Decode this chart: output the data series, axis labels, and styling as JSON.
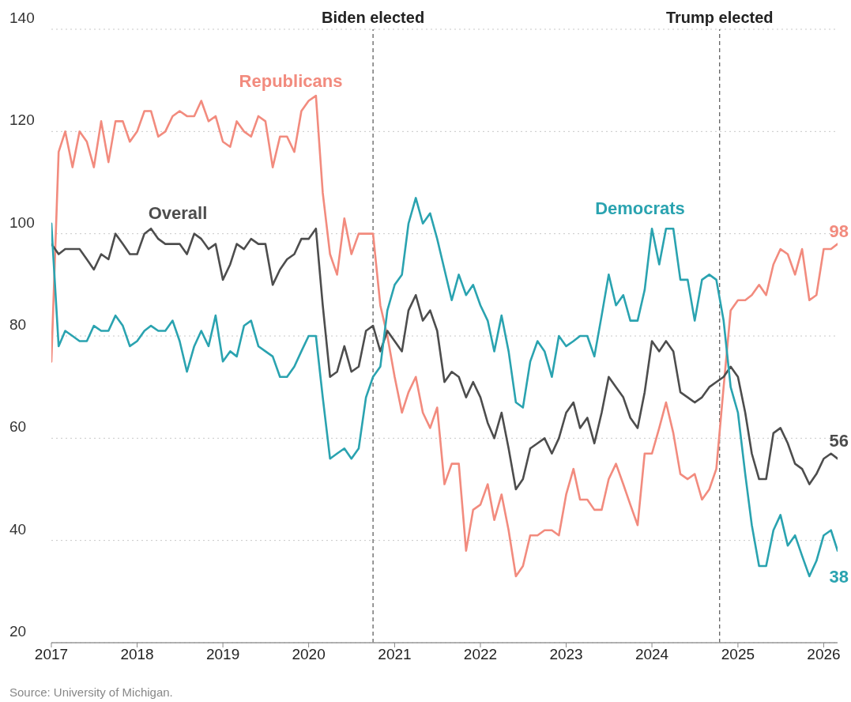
{
  "chart_data": {
    "type": "line",
    "x": [
      "2017-01",
      "2017-02",
      "2017-03",
      "2017-04",
      "2017-05",
      "2017-06",
      "2017-07",
      "2017-08",
      "2017-09",
      "2017-10",
      "2017-11",
      "2017-12",
      "2018-01",
      "2018-02",
      "2018-03",
      "2018-04",
      "2018-05",
      "2018-06",
      "2018-07",
      "2018-08",
      "2018-09",
      "2018-10",
      "2018-11",
      "2018-12",
      "2019-01",
      "2019-02",
      "2019-03",
      "2019-04",
      "2019-05",
      "2019-06",
      "2019-07",
      "2019-08",
      "2019-09",
      "2019-10",
      "2019-11",
      "2019-12",
      "2020-01",
      "2020-02",
      "2020-03",
      "2020-04",
      "2020-05",
      "2020-06",
      "2020-07",
      "2020-08",
      "2020-09",
      "2020-10",
      "2020-11",
      "2020-12",
      "2021-01",
      "2021-02",
      "2021-03",
      "2021-04",
      "2021-05",
      "2021-06",
      "2021-07",
      "2021-08",
      "2021-09",
      "2021-10",
      "2021-11",
      "2021-12",
      "2022-01",
      "2022-02",
      "2022-03",
      "2022-04",
      "2022-05",
      "2022-06",
      "2022-07",
      "2022-08",
      "2022-09",
      "2022-10",
      "2022-11",
      "2022-12",
      "2023-01",
      "2023-02",
      "2023-03",
      "2023-04",
      "2023-05",
      "2023-06",
      "2023-07",
      "2023-08",
      "2023-09",
      "2023-10",
      "2023-11",
      "2023-12",
      "2024-01",
      "2024-02",
      "2024-03",
      "2024-04",
      "2024-05",
      "2024-06",
      "2024-07",
      "2024-08",
      "2024-09",
      "2024-10",
      "2024-11",
      "2024-12",
      "2025-01",
      "2025-02",
      "2025-03",
      "2025-04",
      "2025-05",
      "2025-06",
      "2025-07",
      "2025-08",
      "2025-09",
      "2025-10",
      "2025-11",
      "2025-12",
      "2026-01",
      "2026-02",
      "2026-03"
    ],
    "series": [
      {
        "name": "Republicans",
        "color": "#f28b7e",
        "values": [
          75,
          116,
          120,
          113,
          120,
          118,
          113,
          122,
          114,
          122,
          122,
          118,
          120,
          124,
          124,
          119,
          120,
          123,
          124,
          123,
          123,
          126,
          122,
          123,
          118,
          117,
          122,
          120,
          119,
          123,
          122,
          113,
          119,
          119,
          116,
          124,
          126,
          127,
          108,
          96,
          92,
          103,
          96,
          100,
          100,
          100,
          86,
          80,
          72,
          65,
          69,
          72,
          65,
          62,
          66,
          51,
          55,
          55,
          38,
          46,
          47,
          51,
          44,
          49,
          42,
          33,
          35,
          41,
          41,
          42,
          42,
          41,
          49,
          54,
          48,
          48,
          46,
          46,
          52,
          55,
          51,
          47,
          43,
          57,
          57,
          62,
          67,
          61,
          53,
          52,
          53,
          48,
          50,
          54,
          70,
          85,
          87,
          87,
          88,
          90,
          88,
          94,
          97,
          96,
          92,
          97,
          87,
          88,
          97,
          97,
          98
        ]
      },
      {
        "name": "Overall",
        "color": "#4d4d4d",
        "values": [
          98,
          96,
          97,
          97,
          97,
          95,
          93,
          96,
          95,
          100,
          98,
          96,
          96,
          100,
          101,
          99,
          98,
          98,
          98,
          96,
          100,
          99,
          97,
          98,
          91,
          94,
          98,
          97,
          99,
          98,
          98,
          90,
          93,
          95,
          96,
          99,
          99,
          101,
          86,
          72,
          73,
          78,
          73,
          74,
          81,
          82,
          77,
          81,
          79,
          77,
          85,
          88,
          83,
          85,
          81,
          71,
          73,
          72,
          68,
          71,
          68,
          63,
          60,
          65,
          58,
          50,
          52,
          58,
          59,
          60,
          57,
          60,
          65,
          67,
          62,
          64,
          59,
          65,
          72,
          70,
          68,
          64,
          62,
          69,
          79,
          77,
          79,
          77,
          69,
          68,
          67,
          68,
          70,
          71,
          72,
          74,
          72,
          65,
          57,
          52,
          52,
          61,
          62,
          59,
          55,
          54,
          51,
          53,
          56,
          57,
          56
        ]
      },
      {
        "name": "Democrats",
        "color": "#2aa3b0",
        "values": [
          102,
          78,
          81,
          80,
          79,
          79,
          82,
          81,
          81,
          84,
          82,
          78,
          79,
          81,
          82,
          81,
          81,
          83,
          79,
          73,
          78,
          81,
          78,
          84,
          75,
          77,
          76,
          82,
          83,
          78,
          77,
          76,
          72,
          72,
          74,
          77,
          80,
          80,
          68,
          56,
          57,
          58,
          56,
          58,
          68,
          72,
          74,
          85,
          90,
          92,
          102,
          107,
          102,
          104,
          99,
          93,
          87,
          92,
          88,
          90,
          86,
          83,
          77,
          84,
          77,
          67,
          66,
          75,
          79,
          77,
          72,
          80,
          78,
          79,
          80,
          80,
          76,
          84,
          92,
          86,
          88,
          83,
          83,
          89,
          101,
          94,
          101,
          101,
          91,
          91,
          83,
          91,
          92,
          91,
          83,
          70,
          65,
          53,
          43,
          35,
          35,
          42,
          45,
          39,
          41,
          37,
          33,
          36,
          41,
          42,
          38
        ]
      }
    ],
    "xlim": [
      "2017-01",
      "2026-03"
    ],
    "xticks": [
      "2017",
      "2018",
      "2019",
      "2020",
      "2021",
      "2022",
      "2023",
      "2024",
      "2025",
      "2026"
    ],
    "ylim": [
      20,
      140
    ],
    "yticks": [
      20,
      40,
      60,
      80,
      100,
      120,
      140
    ],
    "grid": "y",
    "ref_lines": [
      {
        "axis": "x",
        "value": "2020-10",
        "label": "Biden elected",
        "line_style": "dashed"
      },
      {
        "axis": "x",
        "value": "2024-10-15",
        "label": "Trump elected",
        "line_style": "dashed"
      }
    ],
    "annotations": [
      {
        "text": "98",
        "x": "2026-03",
        "y": 98
      },
      {
        "text": "56",
        "x": "2026-03",
        "y": 56
      },
      {
        "text": "38",
        "x": "2026-03",
        "y": 38
      },
      "Source: University of Michigan."
    ]
  }
}
